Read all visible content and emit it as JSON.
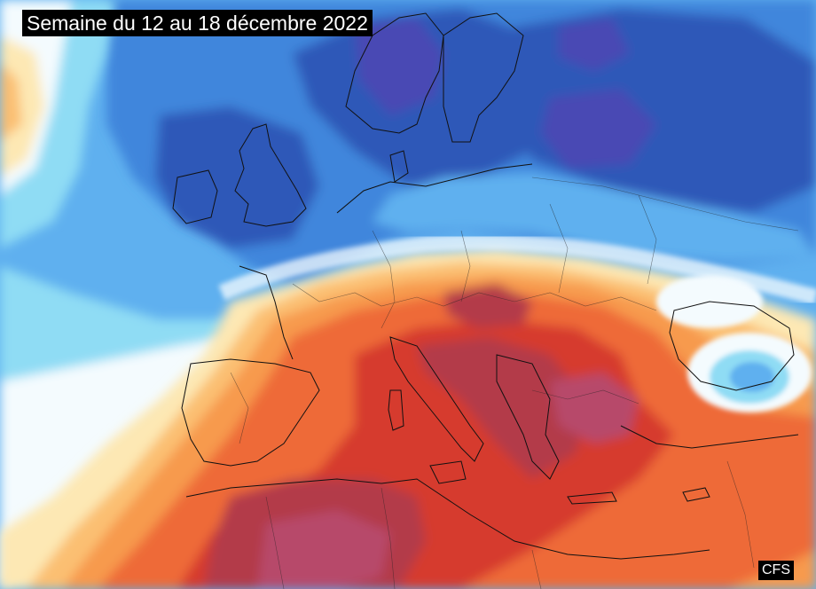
{
  "title": "Semaine du 12 au 18 décembre 2022",
  "source_label": "CFS",
  "palette": {
    "deep_purple": "#4a48b4",
    "dark_blue": "#2d58b8",
    "blue": "#3f86dc",
    "light_blue": "#5fb0ef",
    "cyan": "#8fdcf4",
    "white_zero": "#f4fbfe",
    "pale_yellow": "#fde8b4",
    "light_orange": "#fbbf72",
    "orange": "#f79a4d",
    "red_orange": "#ee6a38",
    "red": "#d63a2e",
    "dark_red": "#b33a4a",
    "magenta_red": "#b74a6a"
  }
}
